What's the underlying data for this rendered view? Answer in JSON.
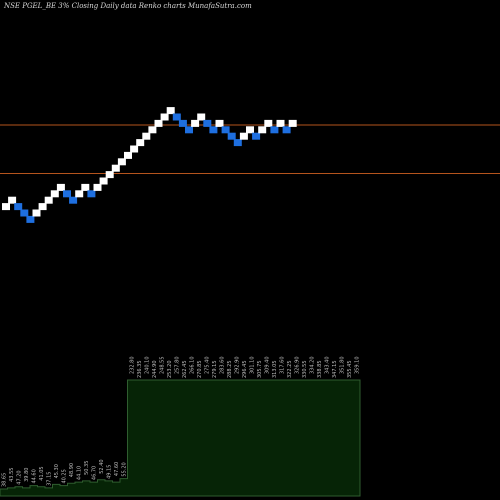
{
  "chart_data": {
    "type": "renko",
    "title": "NSE PGEL_BE 3% Closing Daily data Renko charts MunafaSutra.com",
    "colors": {
      "background": "#000000",
      "up_brick": "#ffffff",
      "down_brick": "#1e6fe0",
      "level_line": "#b5541d",
      "volume_fill": "#062406",
      "volume_stroke": "#2f5d2f",
      "label": "#bfbfbf"
    },
    "price_range": [
      55,
      205
    ],
    "brick_rise": 4.8,
    "bricks": [
      {
        "dir": "up",
        "level": 1
      },
      {
        "dir": "up",
        "level": 2
      },
      {
        "dir": "down",
        "level": 1
      },
      {
        "dir": "down",
        "level": 0
      },
      {
        "dir": "down",
        "level": -1
      },
      {
        "dir": "up",
        "level": 0
      },
      {
        "dir": "up",
        "level": 1
      },
      {
        "dir": "up",
        "level": 2
      },
      {
        "dir": "up",
        "level": 3
      },
      {
        "dir": "up",
        "level": 4
      },
      {
        "dir": "down",
        "level": 3
      },
      {
        "dir": "down",
        "level": 2
      },
      {
        "dir": "up",
        "level": 3
      },
      {
        "dir": "up",
        "level": 4
      },
      {
        "dir": "down",
        "level": 3
      },
      {
        "dir": "up",
        "level": 4
      },
      {
        "dir": "up",
        "level": 5
      },
      {
        "dir": "up",
        "level": 6
      },
      {
        "dir": "up",
        "level": 7
      },
      {
        "dir": "up",
        "level": 8
      },
      {
        "dir": "up",
        "level": 9
      },
      {
        "dir": "up",
        "level": 10
      },
      {
        "dir": "up",
        "level": 11
      },
      {
        "dir": "up",
        "level": 12
      },
      {
        "dir": "up",
        "level": 13
      },
      {
        "dir": "up",
        "level": 14
      },
      {
        "dir": "up",
        "level": 15
      },
      {
        "dir": "up",
        "level": 16
      },
      {
        "dir": "down",
        "level": 15
      },
      {
        "dir": "down",
        "level": 14
      },
      {
        "dir": "down",
        "level": 13
      },
      {
        "dir": "up",
        "level": 14
      },
      {
        "dir": "up",
        "level": 15
      },
      {
        "dir": "down",
        "level": 14
      },
      {
        "dir": "down",
        "level": 13
      },
      {
        "dir": "up",
        "level": 14
      },
      {
        "dir": "down",
        "level": 13
      },
      {
        "dir": "down",
        "level": 12
      },
      {
        "dir": "down",
        "level": 11
      },
      {
        "dir": "up",
        "level": 12
      },
      {
        "dir": "up",
        "level": 13
      },
      {
        "dir": "down",
        "level": 12
      },
      {
        "dir": "up",
        "level": 13
      },
      {
        "dir": "up",
        "level": 14
      },
      {
        "dir": "down",
        "level": 13
      },
      {
        "dir": "up",
        "level": 14
      },
      {
        "dir": "down",
        "level": 13
      },
      {
        "dir": "up",
        "level": 14
      }
    ],
    "horizontal_levels": [
      172,
      113
    ],
    "volume": {
      "values": [
        6,
        7,
        8,
        7,
        9,
        8,
        7,
        10,
        9,
        11,
        12,
        13,
        12,
        14,
        13,
        12,
        15,
        100,
        100,
        100,
        100,
        100,
        100,
        100,
        100,
        100,
        100,
        100,
        100,
        100,
        100,
        100,
        100,
        100,
        100,
        100,
        100,
        100,
        100,
        100,
        100,
        100,
        100,
        100,
        100,
        100,
        100,
        100
      ],
      "labels": [
        "38.65",
        "43.55",
        "47.20",
        "39.80",
        "44.60",
        "41.05",
        "37.15",
        "45.30",
        "40.25",
        "48.90",
        "44.10",
        "50.35",
        "46.70",
        "52.40",
        "49.15",
        "47.60",
        "55.20",
        "232.80",
        "236.35",
        "240.10",
        "244.90",
        "248.55",
        "253.20",
        "257.80",
        "262.45",
        "266.10",
        "270.85",
        "275.40",
        "279.15",
        "283.60",
        "288.25",
        "292.90",
        "296.45",
        "301.10",
        "305.75",
        "309.40",
        "313.05",
        "317.60",
        "322.25",
        "326.90",
        "330.55",
        "334.20",
        "338.85",
        "343.40",
        "347.15",
        "351.80",
        "355.45",
        "359.10"
      ]
    }
  }
}
